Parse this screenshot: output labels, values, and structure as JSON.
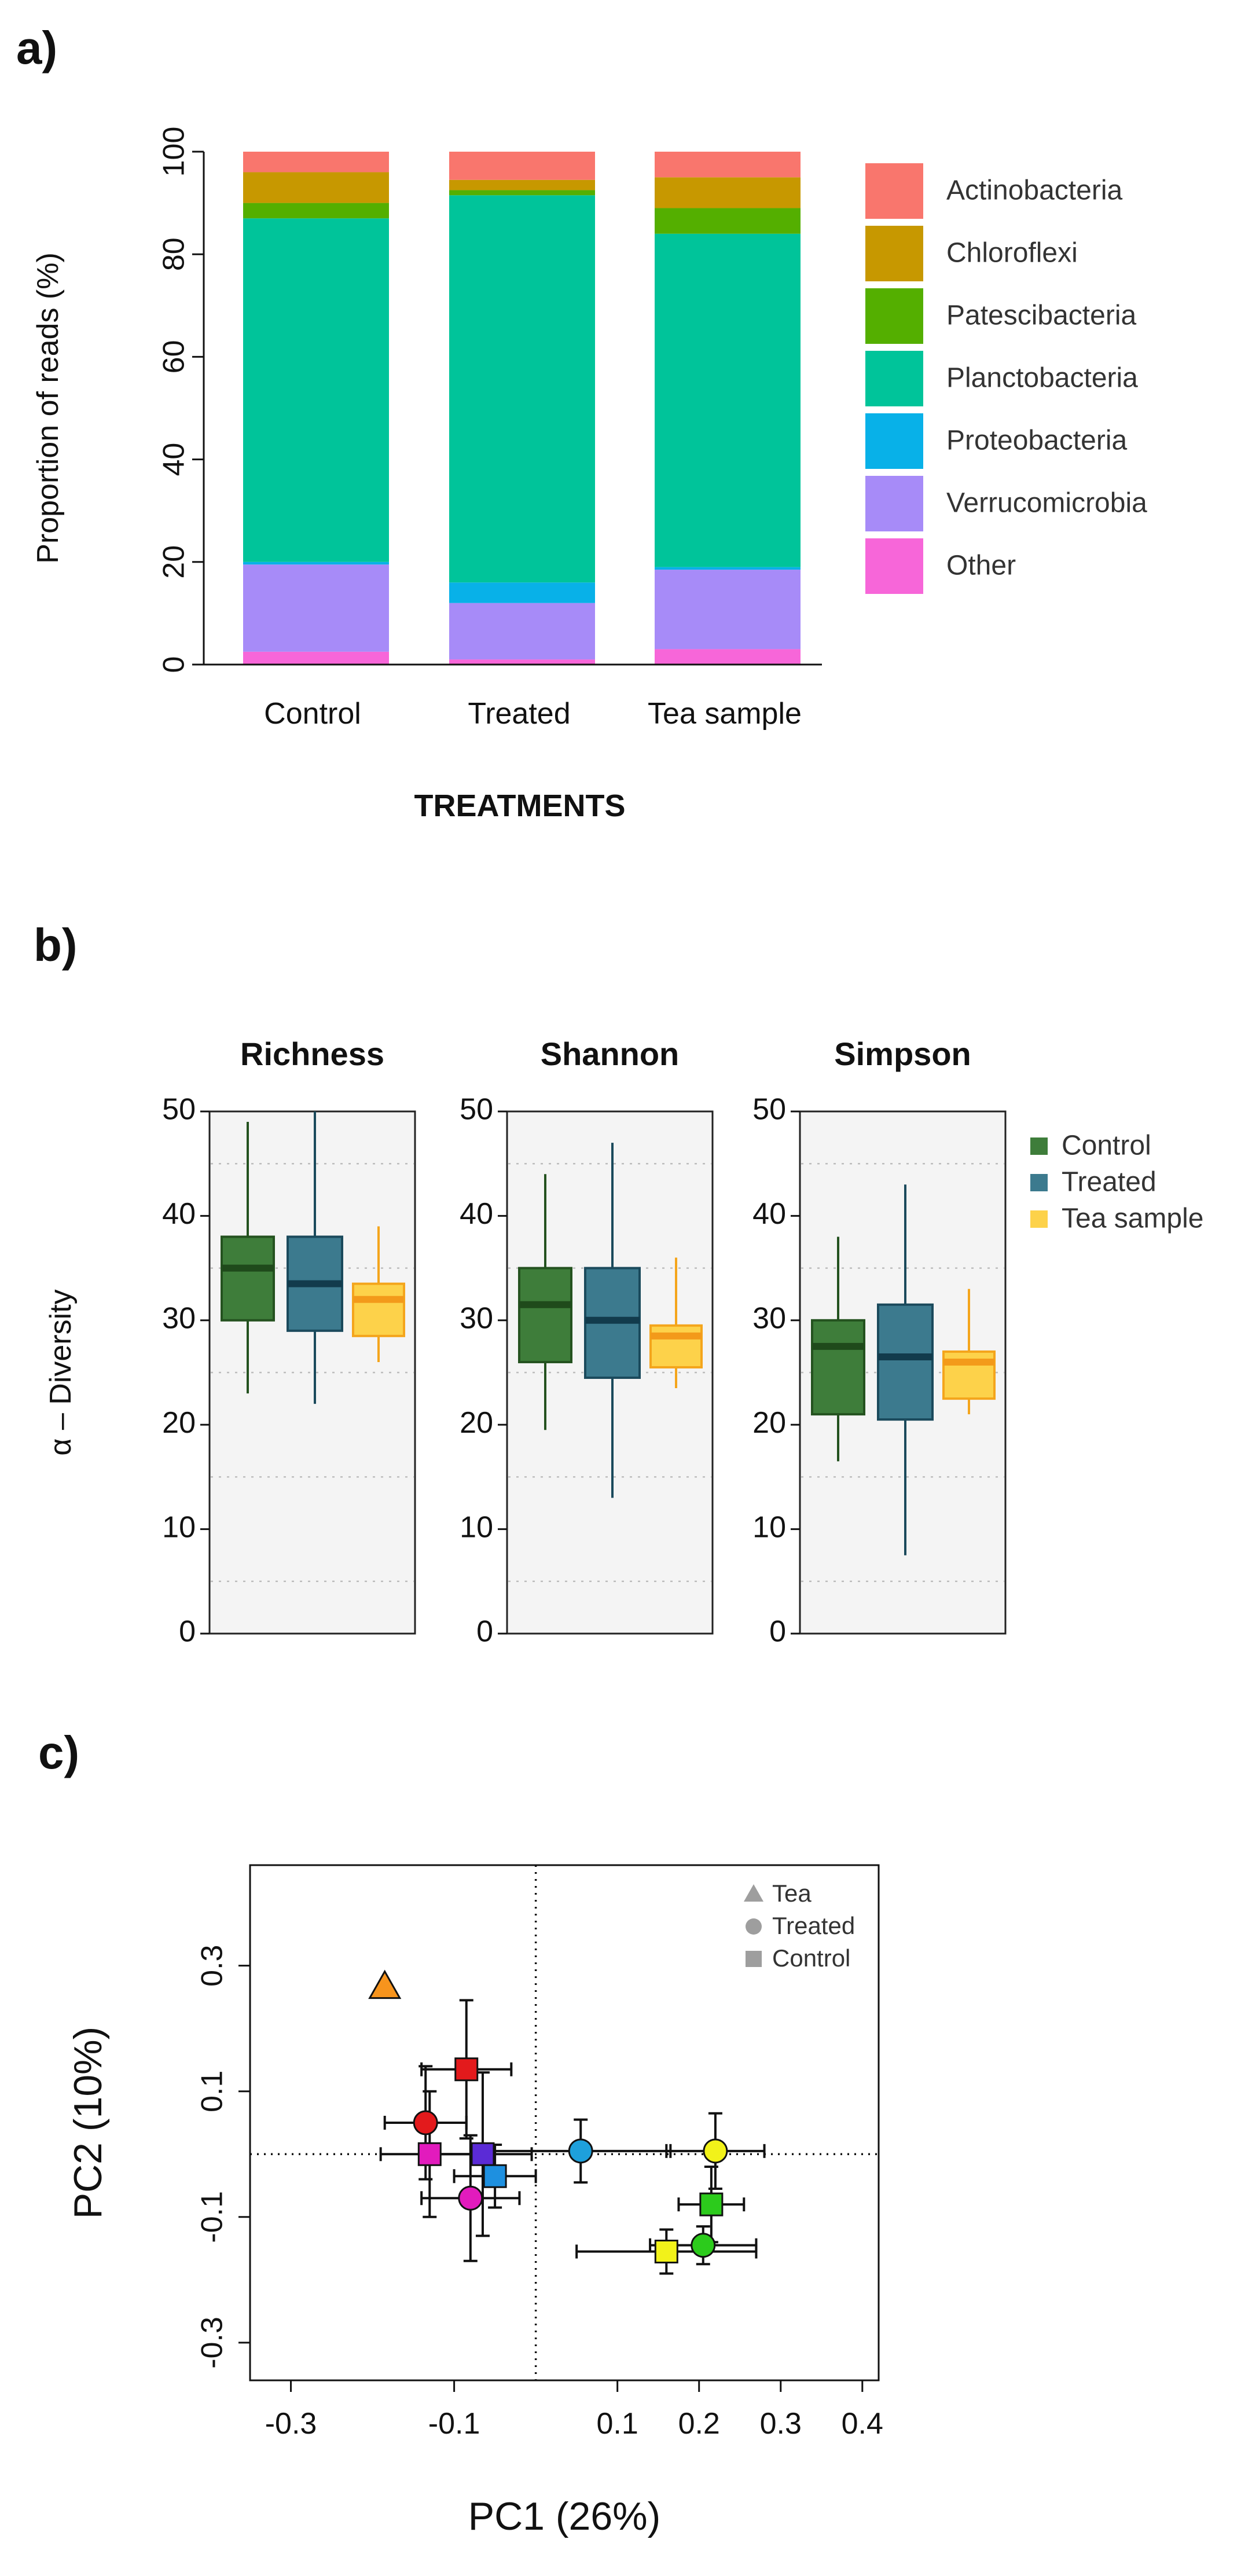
{
  "panels": {
    "a": "a)",
    "b": "b)",
    "c": "c)"
  },
  "chart_data": [
    {
      "type": "bar",
      "stacked": true,
      "title": "",
      "xlabel": "TREATMENTS",
      "ylabel": "Proportion of reads (%)",
      "ylim": [
        0,
        100
      ],
      "yticks": [
        0,
        20,
        40,
        60,
        80,
        100
      ],
      "categories": [
        "Control",
        "Treated",
        "Tea sample"
      ],
      "series": [
        {
          "name": "Other",
          "color": "#F766D9",
          "values": [
            2.5,
            1,
            3
          ]
        },
        {
          "name": "Verrucomicrobia",
          "color": "#A78BF8",
          "values": [
            17,
            11,
            15.5
          ]
        },
        {
          "name": "Proteobacteria",
          "color": "#08B1E8",
          "values": [
            0.5,
            4,
            0.5
          ]
        },
        {
          "name": "Planctobacteria",
          "color": "#00C49A",
          "values": [
            67,
            75.5,
            65
          ]
        },
        {
          "name": "Patescibacteria",
          "color": "#54AF00",
          "values": [
            3,
            1,
            5
          ]
        },
        {
          "name": "Chloroflexi",
          "color": "#C79800",
          "values": [
            6,
            2,
            6
          ]
        },
        {
          "name": "Actinobacteria",
          "color": "#F9766D",
          "values": [
            4,
            5.5,
            5
          ]
        }
      ],
      "legend_order": [
        "Actinobacteria",
        "Chloroflexi",
        "Patescibacteria",
        "Planctobacteria",
        "Proteobacteria",
        "Verrucomicrobia",
        "Other"
      ]
    },
    {
      "type": "box",
      "ylabel": "α  – Diversity",
      "ylim": [
        0,
        50
      ],
      "yticks": [
        0,
        10,
        20,
        30,
        40,
        50
      ],
      "groups": [
        {
          "name": "Control",
          "fill": "#3E7D3A",
          "stroke": "#24521F",
          "median_color": "#1F4A1B"
        },
        {
          "name": "Treated",
          "fill": "#3C7A8E",
          "stroke": "#1B4A5C",
          "median_color": "#123B4C"
        },
        {
          "name": "Tea sample",
          "fill": "#FDD24A",
          "stroke": "#F4A51C",
          "median_color": "#F39A1A"
        }
      ],
      "facets": [
        {
          "title": "Richness",
          "boxes": [
            {
              "min": 23,
              "q1": 30,
              "median": 35,
              "q3": 38,
              "max": 49
            },
            {
              "min": 22,
              "q1": 29,
              "median": 33.5,
              "q3": 38,
              "max": 50
            },
            {
              "min": 26,
              "q1": 28.5,
              "median": 32,
              "q3": 33.5,
              "max": 39
            }
          ]
        },
        {
          "title": "Shannon",
          "boxes": [
            {
              "min": 19.5,
              "q1": 26,
              "median": 31.5,
              "q3": 35,
              "max": 44
            },
            {
              "min": 13,
              "q1": 24.5,
              "median": 30,
              "q3": 35,
              "max": 47
            },
            {
              "min": 23.5,
              "q1": 25.5,
              "median": 28.5,
              "q3": 29.5,
              "max": 36
            }
          ]
        },
        {
          "title": "Simpson",
          "boxes": [
            {
              "min": 16.5,
              "q1": 21,
              "median": 27.5,
              "q3": 30,
              "max": 38
            },
            {
              "min": 7.5,
              "q1": 20.5,
              "median": 26.5,
              "q3": 31.5,
              "max": 43
            },
            {
              "min": 21,
              "q1": 22.5,
              "median": 26,
              "q3": 27,
              "max": 33
            }
          ]
        }
      ],
      "dotted_gridlines": [
        5,
        15,
        25,
        35,
        45
      ]
    },
    {
      "type": "scatter",
      "xlabel": "PC1 (26%)",
      "ylabel": "PC2 (10%)",
      "xlim": [
        -0.35,
        0.42
      ],
      "ylim": [
        -0.36,
        0.46
      ],
      "xticks": [
        -0.3,
        -0.1,
        0.1,
        0.2,
        0.3,
        0.4
      ],
      "xtick_labels": [
        "-0.3",
        "-0.1",
        "0.1",
        "0.2",
        "0.3",
        "0.4"
      ],
      "yticks": [
        -0.3,
        -0.1,
        0.1,
        0.3
      ],
      "ytick_labels": [
        "-0.3",
        "-0.1",
        "0.1",
        "0.3"
      ],
      "reference_lines": {
        "x": 0,
        "y": 0
      },
      "legend": [
        {
          "label": "Tea",
          "shape": "triangle"
        },
        {
          "label": "Treated",
          "shape": "circle"
        },
        {
          "label": "Control",
          "shape": "square"
        }
      ],
      "points": [
        {
          "shape": "triangle",
          "color": "#F7941D",
          "x": -0.185,
          "y": 0.265
        },
        {
          "shape": "square",
          "color": "#E31A1C",
          "x": -0.085,
          "y": 0.135,
          "xerr": 0.055,
          "yerr": 0.11
        },
        {
          "shape": "circle",
          "color": "#E31A1C",
          "x": -0.135,
          "y": 0.05,
          "xerr": 0.05,
          "yerr": 0.09
        },
        {
          "shape": "square",
          "color": "#E21BBD",
          "x": -0.13,
          "y": 0.0,
          "xerr": 0.06,
          "yerr": 0.1
        },
        {
          "shape": "circle",
          "color": "#E21BBD",
          "x": -0.08,
          "y": -0.07,
          "xerr": 0.06,
          "yerr": 0.1
        },
        {
          "shape": "square",
          "color": "#5B2BD6",
          "x": -0.065,
          "y": 0.0,
          "xerr": 0.06,
          "yerr": 0.13
        },
        {
          "shape": "square",
          "color": "#1E90E0",
          "x": -0.05,
          "y": -0.035,
          "xerr": 0.05,
          "yerr": 0.05
        },
        {
          "shape": "circle",
          "color": "#1EA0DC",
          "x": 0.055,
          "y": 0.005,
          "xerr": 0.11,
          "yerr": 0.05
        },
        {
          "shape": "circle",
          "color": "#F2F21A",
          "x": 0.22,
          "y": 0.005,
          "xerr": 0.06,
          "yerr": 0.06
        },
        {
          "shape": "square",
          "color": "#2CCB1C",
          "x": 0.215,
          "y": -0.08,
          "xerr": 0.04,
          "yerr": 0.06
        },
        {
          "shape": "circle",
          "color": "#2CCB1C",
          "x": 0.205,
          "y": -0.145,
          "xerr": 0.065,
          "yerr": 0.03
        },
        {
          "shape": "square",
          "color": "#F2F21A",
          "x": 0.16,
          "y": -0.155,
          "xerr": 0.11,
          "yerr": 0.035
        }
      ]
    }
  ]
}
